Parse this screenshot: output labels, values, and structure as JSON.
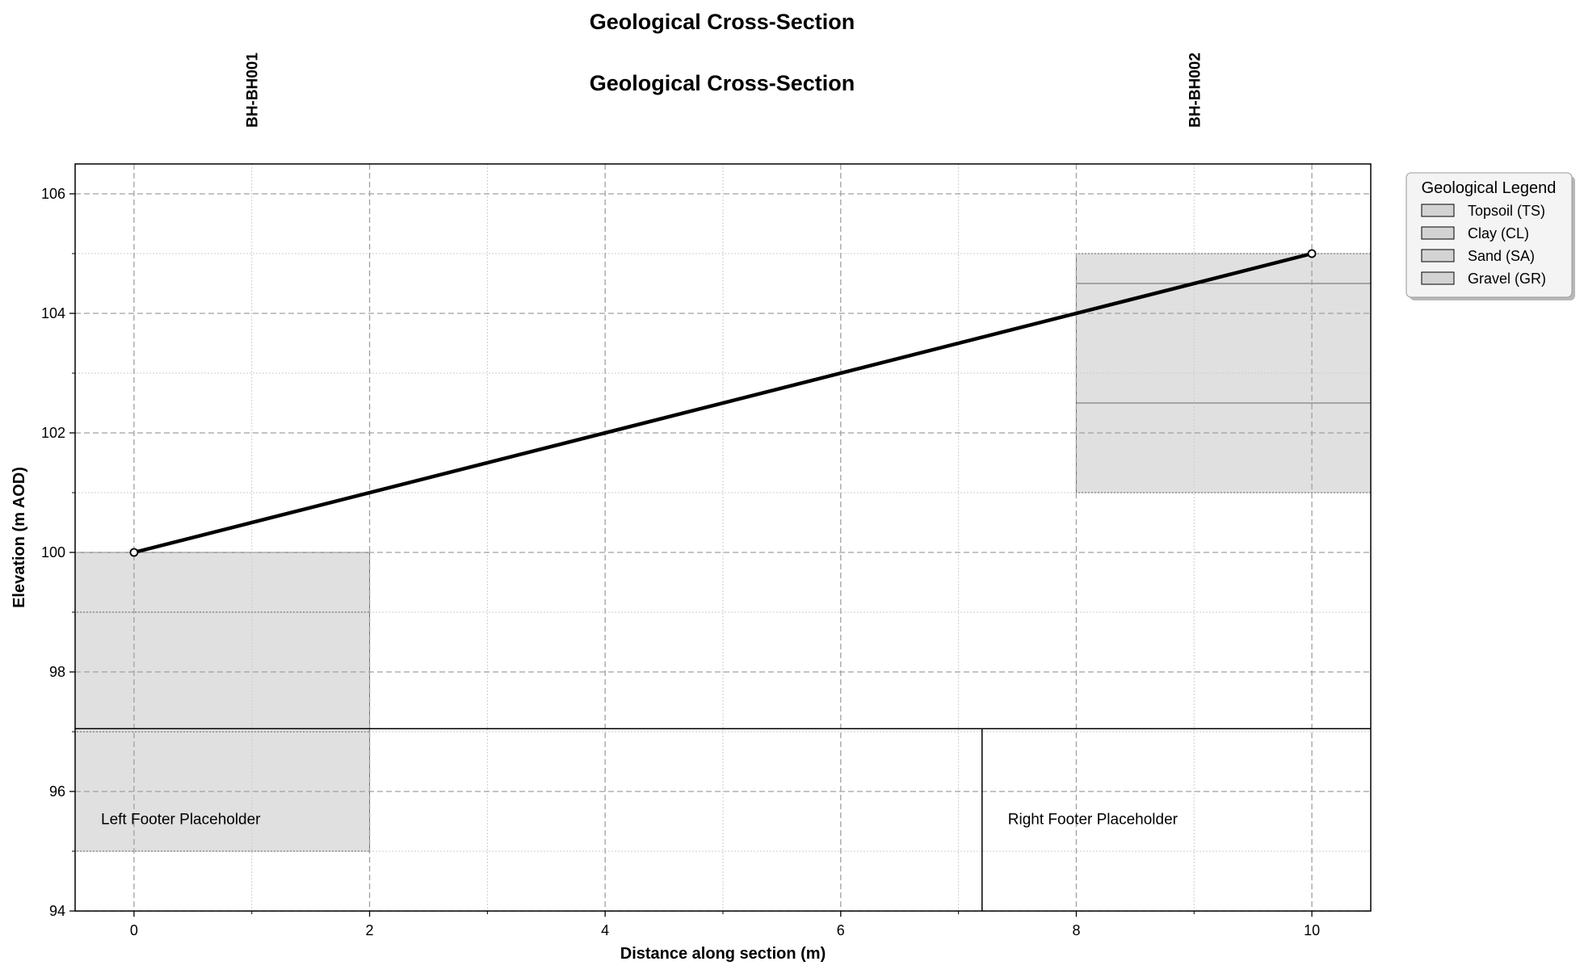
{
  "chart_data": {
    "type": "cross-section",
    "title": "Geological Cross-Section",
    "subtitle": "Geological Cross-Section",
    "xlabel": "Distance along section (m)",
    "ylabel": "Elevation (m AOD)",
    "xlim": [
      -0.5,
      10.5
    ],
    "ylim": [
      94,
      106.5
    ],
    "xticks": [
      0,
      2,
      4,
      6,
      8,
      10
    ],
    "yticks": [
      94,
      96,
      98,
      100,
      102,
      104,
      106
    ],
    "grid": true,
    "borehole_labels": [
      {
        "label": "BH-BH001",
        "x": 1
      },
      {
        "label": "BH-BH002",
        "x": 9
      }
    ],
    "ground_line": {
      "x": [
        0,
        10
      ],
      "y": [
        100,
        105
      ]
    },
    "boreholes": [
      {
        "id": "BH001",
        "x_start": -0.5,
        "x_end": 2,
        "layers": [
          {
            "top": 100,
            "bottom": 99
          },
          {
            "top": 99,
            "bottom": 97
          },
          {
            "top": 97,
            "bottom": 95
          }
        ]
      },
      {
        "id": "BH002",
        "x_start": 8,
        "x_end": 10.5,
        "layers": [
          {
            "top": 105,
            "bottom": 104.5
          },
          {
            "top": 104.5,
            "bottom": 102.5
          },
          {
            "top": 102.5,
            "bottom": 101
          }
        ]
      }
    ],
    "legend": {
      "title": "Geological Legend",
      "position": "outside-top-right",
      "entries": [
        "Topsoil (TS)",
        "Clay (CL)",
        "Sand (SA)",
        "Gravel (GR)"
      ]
    },
    "footer": {
      "left": "Left Footer Placeholder",
      "right": "Right Footer Placeholder"
    },
    "colors": {
      "layer_fill": "#e0e0e0",
      "legend_patch": "#d3d3d3",
      "ground_line": "#000000",
      "grid_major": "#a0a0a0",
      "grid_minor": "#cccccc"
    }
  }
}
